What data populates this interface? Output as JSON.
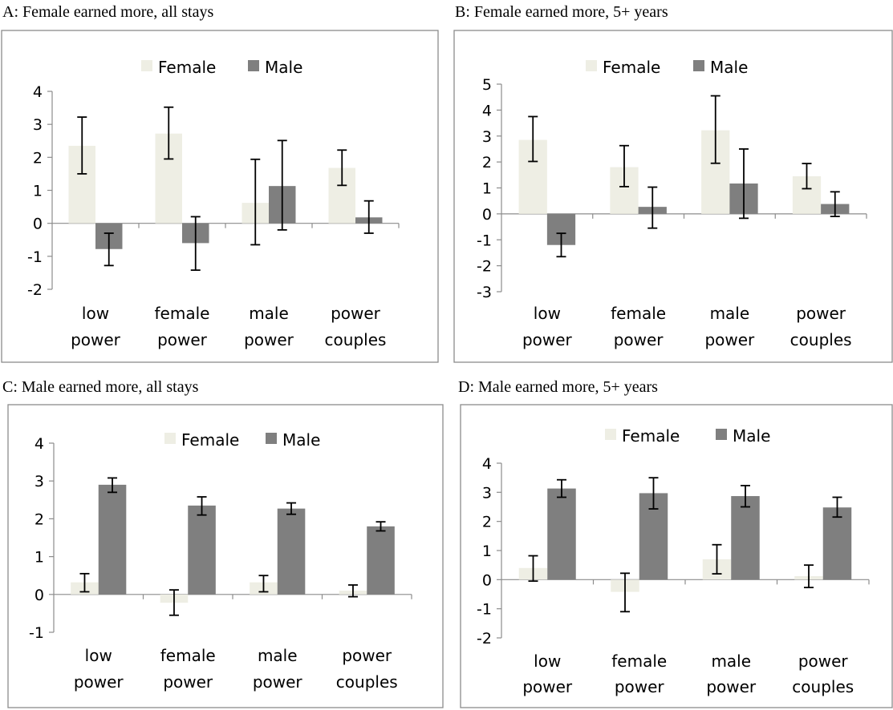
{
  "colors": {
    "female": "#eeeee4",
    "male": "#7f7f7f"
  },
  "chart_data": [
    {
      "type": "bar",
      "title": "A: Female earned more, all stays",
      "categories": [
        [
          "low",
          "power"
        ],
        [
          "female",
          "power"
        ],
        [
          "male",
          "power"
        ],
        [
          "power",
          "couples"
        ]
      ],
      "ylim": [
        -2,
        4
      ],
      "yticks": [
        -2,
        -1,
        0,
        1,
        2,
        3,
        4
      ],
      "legend": "top-center",
      "series": [
        {
          "name": "Female",
          "values": [
            2.35,
            2.72,
            0.62,
            1.68
          ],
          "err_low": [
            1.5,
            1.95,
            -0.65,
            1.15
          ],
          "err_high": [
            3.22,
            3.52,
            1.94,
            2.22
          ]
        },
        {
          "name": "Male",
          "values": [
            -0.78,
            -0.6,
            1.13,
            0.18
          ],
          "err_low": [
            -1.28,
            -1.42,
            -0.2,
            -0.3
          ],
          "err_high": [
            -0.3,
            0.2,
            2.51,
            0.68
          ]
        }
      ]
    },
    {
      "type": "bar",
      "title": "B: Female earned more, 5+ years",
      "categories": [
        [
          "low",
          "power"
        ],
        [
          "female",
          "power"
        ],
        [
          "male",
          "power"
        ],
        [
          "power",
          "couples"
        ]
      ],
      "ylim": [
        -3,
        5
      ],
      "yticks": [
        -3,
        -2,
        -1,
        0,
        1,
        2,
        3,
        4,
        5
      ],
      "legend": "top-center",
      "series": [
        {
          "name": "Female",
          "values": [
            2.85,
            1.8,
            3.22,
            1.45
          ],
          "err_low": [
            2.02,
            1.05,
            1.95,
            0.97
          ],
          "err_high": [
            3.75,
            2.63,
            4.55,
            1.94
          ]
        },
        {
          "name": "Male",
          "values": [
            -1.2,
            0.27,
            1.17,
            0.38
          ],
          "err_low": [
            -1.65,
            -0.55,
            -0.17,
            -0.1
          ],
          "err_high": [
            -0.75,
            1.03,
            2.5,
            0.85
          ]
        }
      ]
    },
    {
      "type": "bar",
      "title": "C: Male earned more, all stays",
      "categories": [
        [
          "low",
          "power"
        ],
        [
          "female",
          "power"
        ],
        [
          "male",
          "power"
        ],
        [
          "power",
          "couples"
        ]
      ],
      "ylim": [
        -1,
        4
      ],
      "yticks": [
        -1,
        0,
        1,
        2,
        3,
        4
      ],
      "legend": "top-center",
      "series": [
        {
          "name": "Female",
          "values": [
            0.32,
            -0.22,
            0.32,
            0.1
          ],
          "err_low": [
            0.07,
            -0.55,
            0.07,
            -0.06
          ],
          "err_high": [
            0.55,
            0.12,
            0.5,
            0.25
          ]
        },
        {
          "name": "Male",
          "values": [
            2.9,
            2.35,
            2.27,
            1.8
          ],
          "err_low": [
            2.7,
            2.1,
            2.12,
            1.68
          ],
          "err_high": [
            3.08,
            2.58,
            2.42,
            1.92
          ]
        }
      ]
    },
    {
      "type": "bar",
      "title": "D: Male earned more, 5+ years",
      "categories": [
        [
          "low",
          "power"
        ],
        [
          "female",
          "power"
        ],
        [
          "male",
          "power"
        ],
        [
          "power",
          "couples"
        ]
      ],
      "ylim": [
        -2,
        4
      ],
      "yticks": [
        -2,
        -1,
        0,
        1,
        2,
        3,
        4
      ],
      "legend": "top-center",
      "series": [
        {
          "name": "Female",
          "values": [
            0.4,
            -0.42,
            0.7,
            0.12
          ],
          "err_low": [
            -0.05,
            -1.1,
            0.2,
            -0.27
          ],
          "err_high": [
            0.82,
            0.22,
            1.2,
            0.5
          ]
        },
        {
          "name": "Male",
          "values": [
            3.13,
            2.97,
            2.87,
            2.48
          ],
          "err_low": [
            2.83,
            2.43,
            2.5,
            2.15
          ],
          "err_high": [
            3.43,
            3.5,
            3.23,
            2.83
          ]
        }
      ]
    }
  ]
}
